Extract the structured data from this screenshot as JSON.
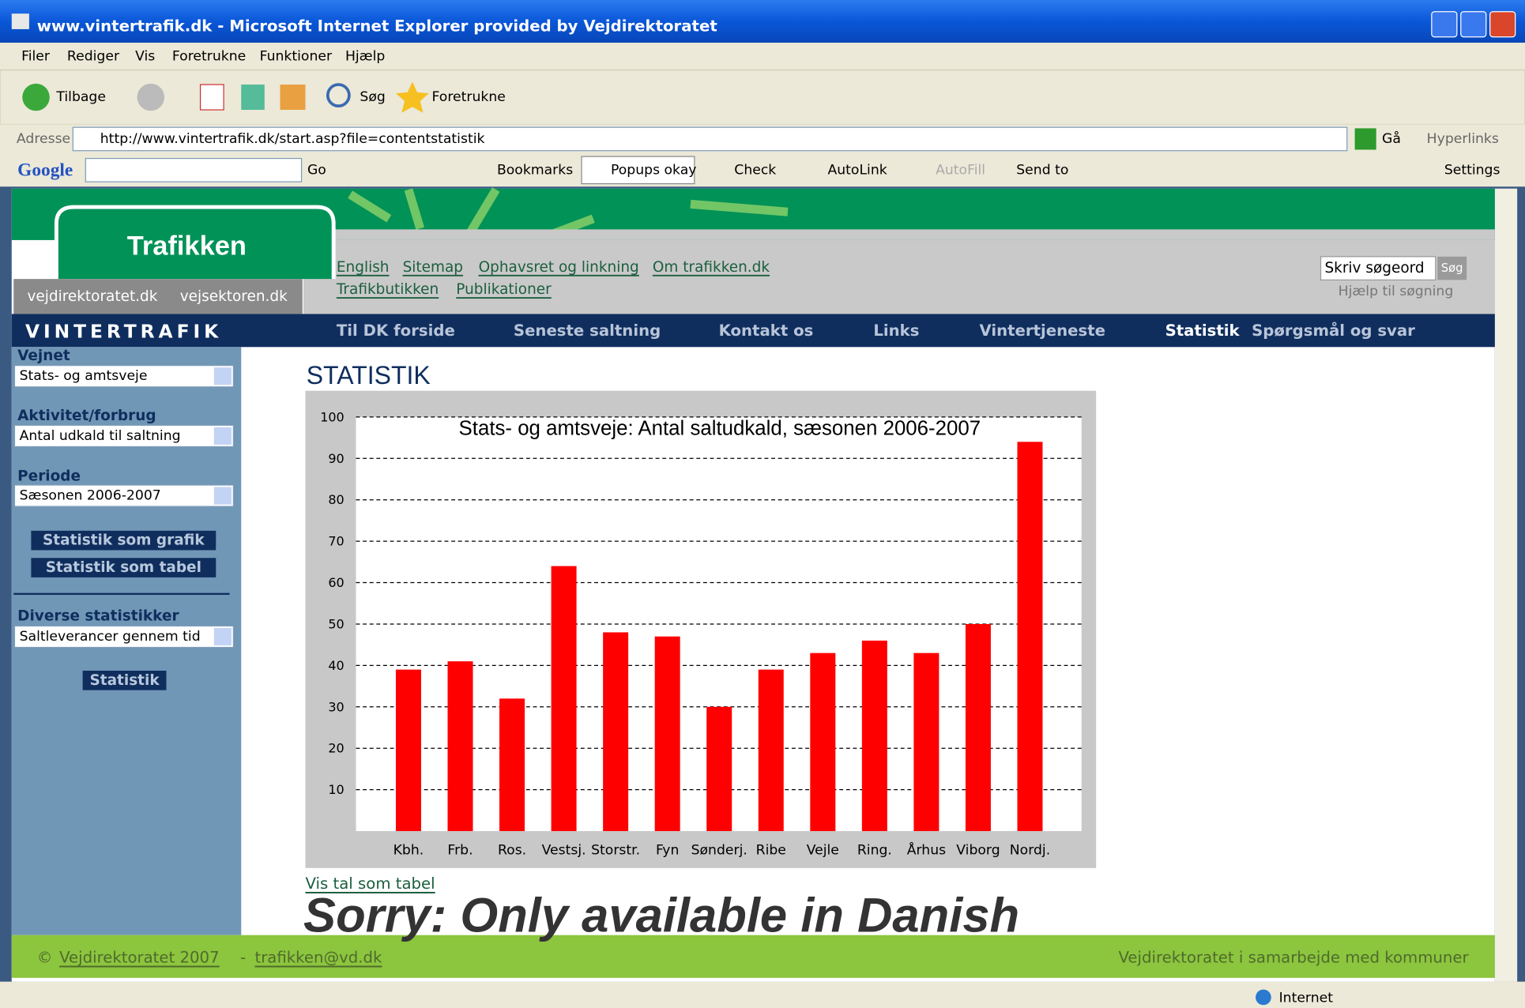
{
  "window": {
    "title": "www.vintertrafik.dk - Microsoft Internet Explorer provided by Vejdirektoratet"
  },
  "menu": [
    "Filer",
    "Rediger",
    "Vis",
    "Foretrukne",
    "Funktioner",
    "Hjælp"
  ],
  "toolbar": [
    "Tilbage",
    "Søg",
    "Foretrukne"
  ],
  "address": {
    "label": "Adresse",
    "url": "http://www.vintertrafik.dk/start.asp?file=contentstatistik",
    "go": "Gå",
    "links": "Hyperlinks"
  },
  "google_bar": {
    "logo": "Google",
    "items": [
      "Go",
      "Bookmarks",
      "Popups okay",
      "Check",
      "AutoLink",
      "AutoFill",
      "Send to",
      "Settings"
    ]
  },
  "site": {
    "logo": "Trafikken",
    "tabs": [
      "vejdirektoratet.dk",
      "vejsektoren.dk"
    ],
    "top_links": [
      "English",
      "Sitemap",
      "Ophavsret og linkning",
      "Om trafikken.dk",
      "Trafikbutikken",
      "Publikationer"
    ],
    "search": {
      "placeholder": "Skriv søgeord",
      "button": "Søg",
      "help": "Hjælp til søgning"
    },
    "brand": "VINTERTRAFIK",
    "nav": [
      "Til DK forside",
      "Seneste saltning",
      "Kontakt os",
      "Links",
      "Vintertjeneste",
      "Statistik",
      "Spørgsmål og svar"
    ]
  },
  "sidebar": {
    "groups": [
      {
        "label": "Vejnet",
        "value": "Stats- og amtsveje"
      },
      {
        "label": "Aktivitet/forbrug",
        "value": "Antal udkald til saltning"
      },
      {
        "label": "Periode",
        "value": "Sæsonen 2006-2007"
      }
    ],
    "buttons": [
      "Statistik som grafik",
      "Statistik som tabel"
    ],
    "diverse": {
      "label": "Diverse statistikker",
      "value": "Saltleverancer gennem tid",
      "button": "Statistik"
    }
  },
  "content": {
    "heading": "STATISTIK",
    "table_link": "Vis tal som tabel",
    "notice": "Sorry: Only available in Danish"
  },
  "footer": {
    "symbol": "©",
    "owner": "Vejdirektoratet 2007",
    "separator": "-",
    "email": "trafikken@vd.dk",
    "partner": "Vejdirektoratet i samarbejde med kommuner"
  },
  "status": {
    "zone": "Internet"
  },
  "chart_data": {
    "type": "bar",
    "title": "Stats- og amtsveje: Antal saltudkald, sæsonen 2006-2007",
    "categories": [
      "Kbh.",
      "Frb.",
      "Ros.",
      "Vestsj.",
      "Storstr.",
      "Fyn",
      "Sønderj.",
      "Ribe",
      "Vejle",
      "Ring.",
      "Århus",
      "Viborg",
      "Nordj."
    ],
    "values": [
      39,
      41,
      32,
      64,
      48,
      47,
      30,
      39,
      43,
      46,
      43,
      50,
      94
    ],
    "color": "#ff0000",
    "ylim": [
      0,
      100
    ],
    "yticks": [
      10,
      20,
      30,
      40,
      50,
      60,
      70,
      80,
      90,
      100
    ],
    "grid": true
  }
}
